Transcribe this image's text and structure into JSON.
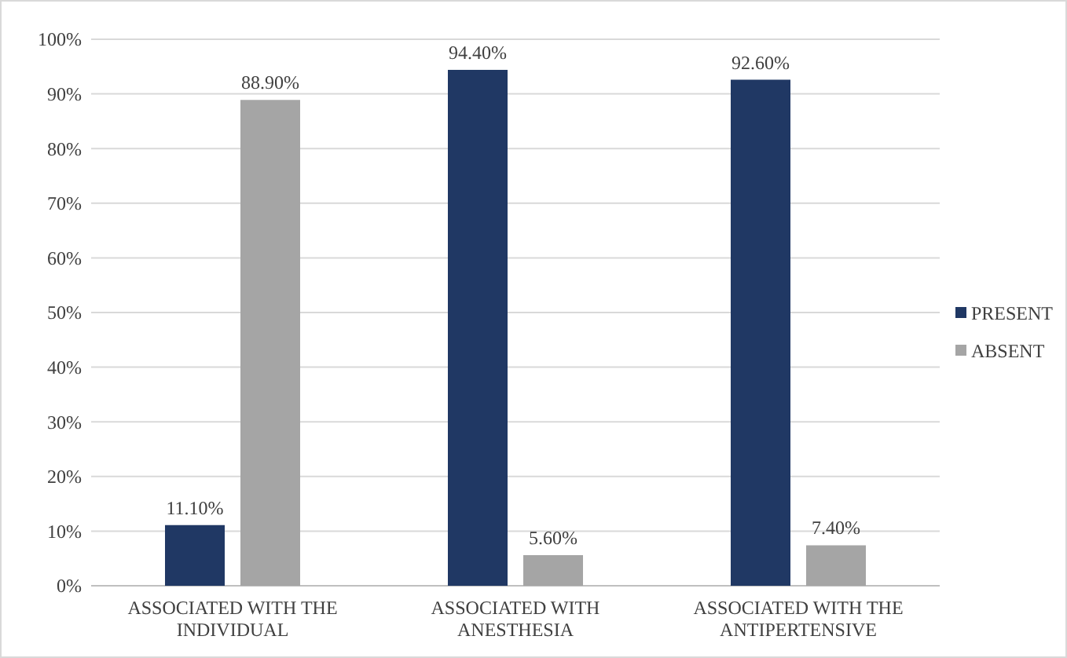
{
  "chart_data": {
    "type": "bar",
    "categories": [
      "ASSOCIATED WITH THE INDIVIDUAL",
      "ASSOCIATED WITH ANESTHESIA",
      "ASSOCIATED WITH THE ANTIPERTENSIVE"
    ],
    "series": [
      {
        "name": "PRESENT",
        "color": "#203864",
        "values": [
          11.1,
          94.4,
          92.6
        ],
        "value_labels": [
          "11.10%",
          "94.40%",
          "92.60%"
        ]
      },
      {
        "name": "ABSENT",
        "color": "#a5a5a5",
        "values": [
          88.9,
          5.6,
          7.4
        ],
        "value_labels": [
          "88.90%",
          "5.60%",
          "7.40%"
        ]
      }
    ],
    "ylim": [
      0,
      100
    ],
    "yticks": [
      {
        "value": 0,
        "label": "0%"
      },
      {
        "value": 10,
        "label": "10%"
      },
      {
        "value": 20,
        "label": "20%"
      },
      {
        "value": 30,
        "label": "30%"
      },
      {
        "value": 40,
        "label": "40%"
      },
      {
        "value": 50,
        "label": "50%"
      },
      {
        "value": 60,
        "label": "60%"
      },
      {
        "value": 70,
        "label": "70%"
      },
      {
        "value": 80,
        "label": "80%"
      },
      {
        "value": 90,
        "label": "90%"
      },
      {
        "value": 100,
        "label": "100%"
      }
    ],
    "grid": "y",
    "legend": "right"
  }
}
